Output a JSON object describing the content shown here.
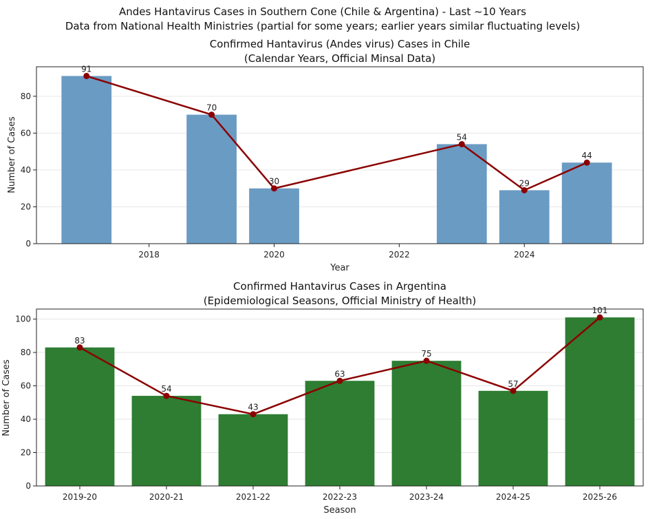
{
  "suptitle": {
    "line1": "Andes Hantavirus Cases in Southern Cone (Chile & Argentina) - Last ~10 Years",
    "line2": "Data from National Health Ministries (partial for some years; earlier years similar fluctuating levels)"
  },
  "colors": {
    "chile_bar": "#6a9bc3",
    "argentina_bar": "#2e7d32",
    "line": "#8b0000",
    "grid": "#e6e6e6",
    "axis": "#222222"
  },
  "chart_data": [
    {
      "type": "bar",
      "overlay": "line",
      "title_line1": "Confirmed Hantavirus (Andes virus) Cases in Chile",
      "title_line2": "(Calendar Years, Official Minsal Data)",
      "xlabel": "Year",
      "ylabel": "Number of Cases",
      "x": [
        2017,
        2019,
        2020,
        2023,
        2024,
        2025
      ],
      "values": [
        91,
        70,
        30,
        54,
        29,
        44
      ],
      "data_labels": [
        "91",
        "70",
        "30",
        "54",
        "29",
        "44"
      ],
      "xlim": [
        2016.2,
        2025.9
      ],
      "ylim": [
        0,
        96
      ],
      "xticks": [
        2018,
        2020,
        2022,
        2024
      ],
      "xtick_labels": [
        "2018",
        "2020",
        "2022",
        "2024"
      ],
      "yticks": [
        0,
        20,
        40,
        60,
        80
      ],
      "ytick_labels": [
        "0",
        "20",
        "40",
        "60",
        "80"
      ],
      "grid": "y"
    },
    {
      "type": "bar",
      "overlay": "line",
      "title_line1": "Confirmed Hantavirus Cases in Argentina",
      "title_line2": "(Epidemiological Seasons, Official Ministry of Health)",
      "xlabel": "Season",
      "ylabel": "Number of Cases",
      "categories": [
        "2019-20",
        "2020-21",
        "2021-22",
        "2022-23",
        "2023-24",
        "2024-25",
        "2025-26"
      ],
      "values": [
        83,
        54,
        43,
        63,
        75,
        57,
        101
      ],
      "data_labels": [
        "83",
        "54",
        "43",
        "63",
        "75",
        "57",
        "101"
      ],
      "ylim": [
        0,
        106
      ],
      "yticks": [
        0,
        20,
        40,
        60,
        80,
        100
      ],
      "ytick_labels": [
        "0",
        "20",
        "40",
        "60",
        "80",
        "100"
      ],
      "grid": "y"
    }
  ]
}
